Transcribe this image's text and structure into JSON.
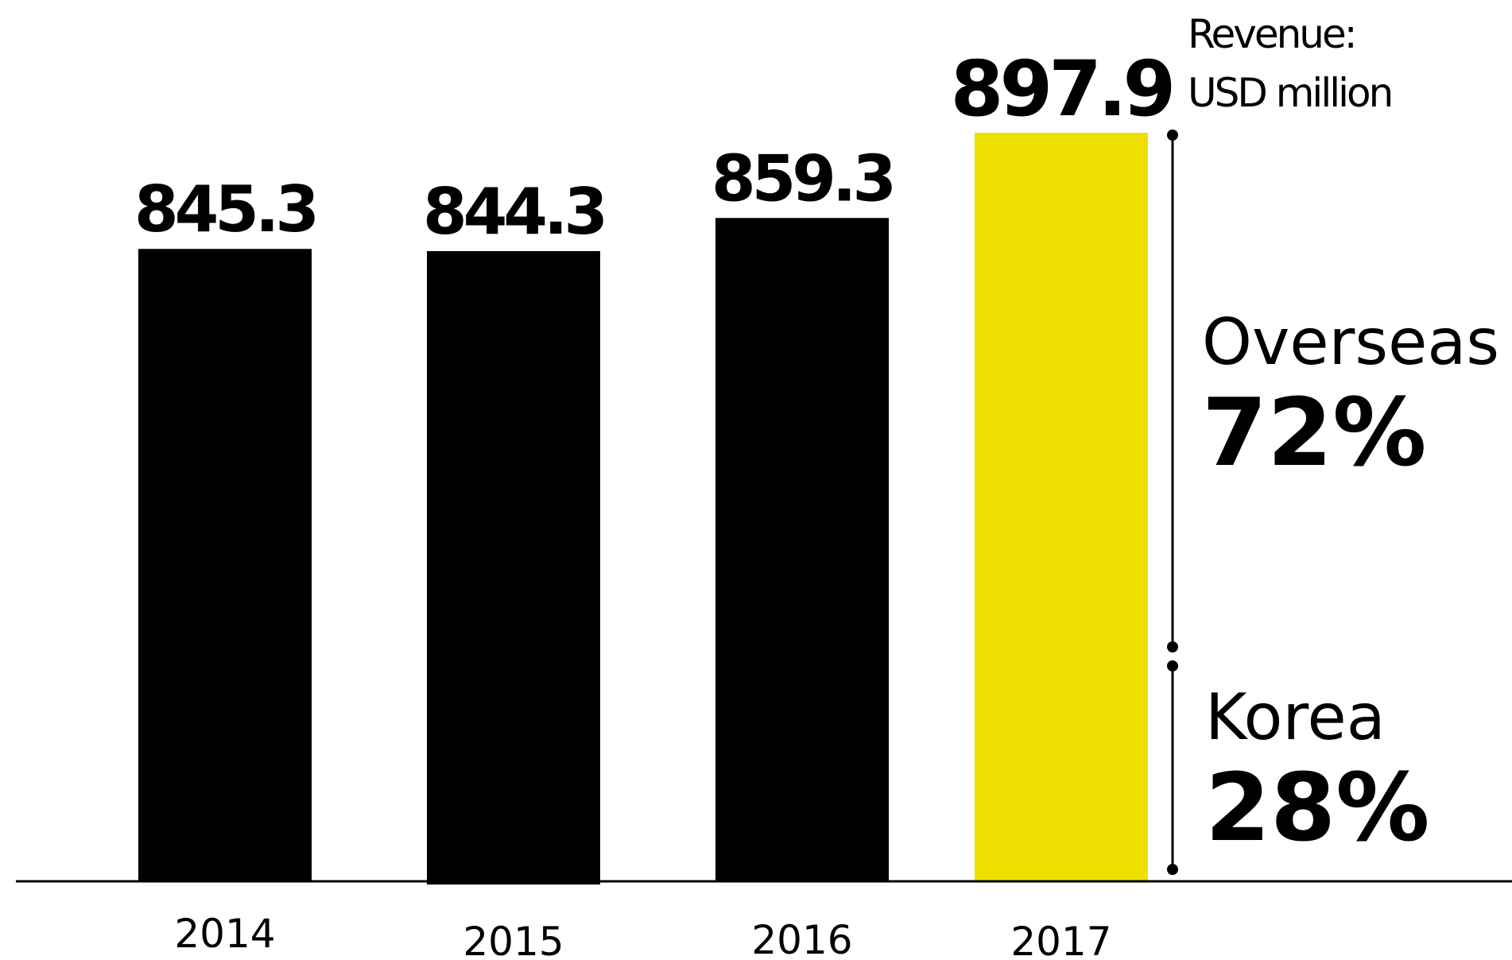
{
  "chart_data": {
    "type": "bar",
    "categories": [
      "2014",
      "2015",
      "2016",
      "2017"
    ],
    "values": [
      845.3,
      844.3,
      859.3,
      897.9
    ],
    "value_labels": [
      "845.3",
      "844.3",
      "859.3",
      "897.9"
    ],
    "highlight_index": 3,
    "unit_label": {
      "line1": "Revenue:",
      "line2": "USD million"
    },
    "breakdown": [
      {
        "name": "Overseas",
        "share": "72%"
      },
      {
        "name": "Korea",
        "share": "28%"
      }
    ],
    "colors": {
      "bar": "#000000",
      "highlight": "#ede000",
      "text": "#000000"
    },
    "grid": false,
    "legend": "none"
  }
}
